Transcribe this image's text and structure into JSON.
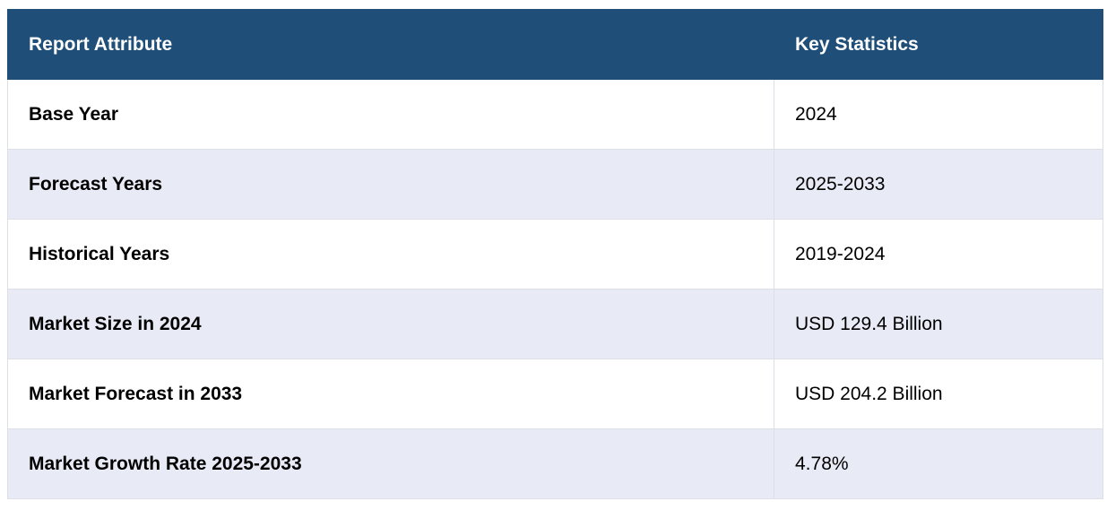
{
  "table": {
    "headers": [
      "Report Attribute",
      "Key Statistics"
    ],
    "rows": [
      {
        "attribute": "Base Year",
        "value": "2024"
      },
      {
        "attribute": "Forecast Years",
        "value": "2025-2033"
      },
      {
        "attribute": "Historical Years",
        "value": "2019-2024"
      },
      {
        "attribute": "Market Size in 2024",
        "value": "USD 129.4 Billion"
      },
      {
        "attribute": "Market Forecast in 2033",
        "value": "USD 204.2 Billion"
      },
      {
        "attribute": "Market Growth Rate 2025-2033",
        "value": "4.78%"
      }
    ]
  },
  "colors": {
    "header_bg": "#1f4e79",
    "row_alt_bg": "#e8eaf6"
  }
}
